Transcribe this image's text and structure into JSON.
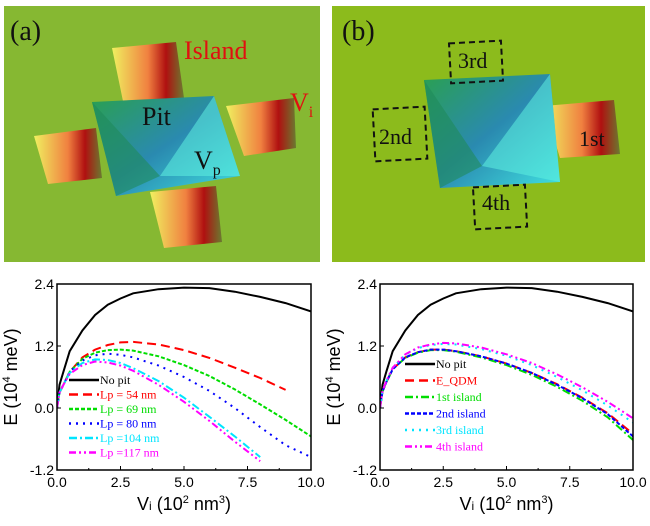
{
  "panel_a": {
    "label": "(a)",
    "island_label": "Island",
    "vi_label": {
      "main": "V",
      "sub": "i"
    },
    "pit_label": "Pit",
    "vp_label": {
      "main": "V",
      "sub": "p"
    },
    "background_color": "#86b832"
  },
  "panel_b": {
    "label": "(b)",
    "island_labels": [
      "1st",
      "2nd",
      "3rd",
      "4th"
    ],
    "background_color": "#8cbb1c"
  },
  "chart_data": [
    {
      "type": "line",
      "xlabel": {
        "main": "V",
        "sub": "i",
        "rest": " (10",
        "sup": "2",
        "rest2": " nm",
        "sup2": "3",
        "end": ")"
      },
      "ylabel": {
        "pre": "E (10",
        "sup": "4",
        "post": " meV)"
      },
      "xlim": [
        0,
        10
      ],
      "ylim": [
        -1.2,
        2.4
      ],
      "xticks": [
        "0.0",
        "2.5",
        "5.0",
        "7.5",
        "10.0"
      ],
      "yticks": [
        "-1.2",
        "0.0",
        "1.2",
        "2.4"
      ],
      "legend": "center-left",
      "x": [
        0,
        0.1,
        0.25,
        0.5,
        1,
        1.5,
        2,
        2.5,
        3,
        4,
        5,
        6,
        7,
        8,
        9,
        10
      ],
      "series": [
        {
          "name": "No pit",
          "color": "#000000",
          "dash": "solid",
          "values": [
            0,
            0.45,
            0.7,
            1.1,
            1.5,
            1.8,
            2.0,
            2.12,
            2.22,
            2.3,
            2.33,
            2.32,
            2.25,
            2.15,
            2.03,
            1.87
          ]
        },
        {
          "name": "Lp =  54 nm",
          "color": "#ff0000",
          "dash": "dash",
          "values": [
            0,
            0.3,
            0.45,
            0.7,
            0.98,
            1.13,
            1.22,
            1.27,
            1.28,
            1.23,
            1.12,
            0.97,
            0.78,
            0.58,
            0.35,
            null
          ]
        },
        {
          "name": "Lp =  69 nm",
          "color": "#00dd00",
          "dash": "short-dash",
          "values": [
            0,
            0.3,
            0.45,
            0.7,
            0.95,
            1.07,
            1.12,
            1.13,
            1.11,
            1.0,
            0.83,
            0.62,
            0.36,
            0.07,
            -0.23,
            -0.55
          ]
        },
        {
          "name": "Lp =  80 nm",
          "color": "#0000ff",
          "dash": "dot",
          "values": [
            0,
            0.3,
            0.45,
            0.7,
            0.92,
            1.02,
            1.05,
            1.03,
            0.98,
            0.82,
            0.6,
            0.33,
            0.0,
            -0.37,
            -0.72,
            -0.95
          ]
        },
        {
          "name": "Lp =104 nm",
          "color": "#00e5ff",
          "dash": "dash-dot",
          "values": [
            0,
            0.3,
            0.45,
            0.68,
            0.87,
            0.94,
            0.93,
            0.87,
            0.77,
            0.52,
            0.2,
            -0.17,
            -0.55,
            -0.95,
            null,
            null
          ]
        },
        {
          "name": "Lp =117 nm",
          "color": "#ff00ff",
          "dash": "dash-dot-dot",
          "values": [
            0,
            0.3,
            0.45,
            0.66,
            0.83,
            0.9,
            0.88,
            0.82,
            0.72,
            0.45,
            0.12,
            -0.25,
            -0.65,
            -1.03,
            null,
            null
          ]
        }
      ]
    },
    {
      "type": "line",
      "xlabel": {
        "main": "V",
        "sub": "i",
        "rest": " (10",
        "sup": "2",
        "rest2": " nm",
        "sup2": "3",
        "end": ")"
      },
      "ylabel": {
        "pre": "E (10",
        "sup": "4",
        "post": " meV)"
      },
      "xlim": [
        0,
        10
      ],
      "ylim": [
        -1.2,
        2.4
      ],
      "xticks": [
        "0.0",
        "2.5",
        "5.0",
        "7.5",
        "10.0"
      ],
      "yticks": [
        "-1.2",
        "0.0",
        "1.2",
        "2.4"
      ],
      "legend": "center-left",
      "x": [
        0,
        0.1,
        0.25,
        0.5,
        1,
        1.5,
        2,
        2.5,
        3,
        4,
        5,
        6,
        7,
        8,
        9,
        10
      ],
      "series": [
        {
          "name": "No pit",
          "color": "#000000",
          "dash": "solid",
          "values": [
            0,
            0.45,
            0.7,
            1.1,
            1.5,
            1.8,
            2.0,
            2.12,
            2.22,
            2.3,
            2.33,
            2.32,
            2.25,
            2.15,
            2.03,
            1.87
          ]
        },
        {
          "name": "E_QDM",
          "color": "#ff0000",
          "dash": "dash",
          "values": [
            0,
            0.32,
            0.5,
            0.75,
            0.98,
            1.08,
            1.13,
            1.13,
            1.1,
            1.0,
            0.86,
            0.68,
            0.46,
            0.2,
            -0.1,
            -0.5
          ]
        },
        {
          "name": "1st island",
          "color": "#00dd00",
          "dash": "dash-dot",
          "values": [
            0,
            0.32,
            0.5,
            0.75,
            0.97,
            1.07,
            1.12,
            1.12,
            1.09,
            0.98,
            0.83,
            0.64,
            0.41,
            0.14,
            -0.18,
            -0.62
          ]
        },
        {
          "name": "2nd island",
          "color": "#0000ff",
          "dash": "short-dash",
          "values": [
            0,
            0.32,
            0.5,
            0.75,
            0.98,
            1.08,
            1.13,
            1.13,
            1.1,
            1.0,
            0.86,
            0.68,
            0.45,
            0.19,
            -0.12,
            -0.55
          ]
        },
        {
          "name": "3rd island",
          "color": "#00e5ff",
          "dash": "dot",
          "values": [
            0,
            0.33,
            0.52,
            0.78,
            1.03,
            1.16,
            1.22,
            1.24,
            1.23,
            1.14,
            1.01,
            0.83,
            0.6,
            0.34,
            0.05,
            -0.28
          ]
        },
        {
          "name": "4th island",
          "color": "#ff00ff",
          "dash": "dash-dot-dot",
          "values": [
            0,
            0.33,
            0.52,
            0.78,
            1.04,
            1.17,
            1.23,
            1.26,
            1.25,
            1.17,
            1.04,
            0.87,
            0.65,
            0.4,
            0.12,
            -0.2
          ]
        }
      ]
    }
  ]
}
